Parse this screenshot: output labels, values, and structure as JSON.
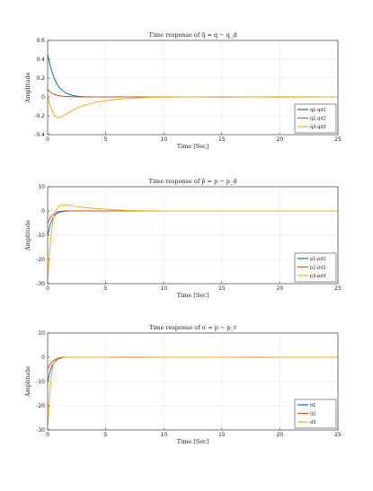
{
  "chart_data": [
    {
      "type": "line",
      "title": "Time response of q̃ = q − q_d",
      "xlabel": "Time [Sec]",
      "ylabel": "Amplitude",
      "xlim": [
        0,
        25
      ],
      "ylim": [
        -0.4,
        0.6
      ],
      "xticks": [
        "0",
        "5",
        "10",
        "15",
        "20",
        "25"
      ],
      "yticks": [
        "-0.4",
        "-0.2",
        "0",
        "0.2",
        "0.4",
        "0.6"
      ],
      "grid": true,
      "legend": "bottom-right",
      "series": [
        {
          "name": "q1-qd1",
          "color": "#0072BD",
          "x": [
            0,
            0.25,
            0.5,
            0.75,
            1,
            1.5,
            2,
            2.5,
            3,
            4,
            5,
            7,
            10,
            15,
            20,
            25
          ],
          "y": [
            0.45,
            0.32,
            0.22,
            0.15,
            0.1,
            0.045,
            0.02,
            0.008,
            0.003,
            0,
            0,
            0,
            0,
            0,
            0,
            0
          ]
        },
        {
          "name": "q2-qd2",
          "color": "#D95319",
          "x": [
            0,
            0.25,
            0.5,
            0.75,
            1,
            1.5,
            2,
            2.5,
            3,
            4,
            5,
            7,
            10,
            15,
            20,
            25
          ],
          "y": [
            0.08,
            0.05,
            0.03,
            0.02,
            0.012,
            0.006,
            0.003,
            0.001,
            0,
            0,
            0,
            0,
            0,
            0,
            0,
            0
          ]
        },
        {
          "name": "q3-qd3",
          "color": "#EDB120",
          "x": [
            0,
            0.3,
            0.6,
            0.9,
            1.2,
            1.5,
            2,
            2.5,
            3,
            4,
            5,
            6,
            7,
            8,
            9,
            10,
            12,
            15,
            20,
            25
          ],
          "y": [
            0,
            -0.12,
            -0.2,
            -0.22,
            -0.21,
            -0.19,
            -0.155,
            -0.12,
            -0.095,
            -0.06,
            -0.04,
            -0.025,
            -0.015,
            -0.008,
            -0.004,
            -0.002,
            0,
            0.003,
            -0.002,
            0
          ]
        }
      ]
    },
    {
      "type": "line",
      "title": "Time response of p̃ = p − p_d",
      "xlabel": "Time [Sec]",
      "ylabel": "Amplitude",
      "xlim": [
        0,
        25
      ],
      "ylim": [
        -30,
        10
      ],
      "xticks": [
        "0",
        "5",
        "10",
        "15",
        "20",
        "25"
      ],
      "yticks": [
        "-30",
        "-20",
        "-10",
        "0",
        "10"
      ],
      "grid": true,
      "legend": "bottom-right",
      "series": [
        {
          "name": "p1-pd1",
          "color": "#0072BD",
          "x": [
            0,
            0.2,
            0.4,
            0.6,
            0.8,
            1,
            1.5,
            2,
            3,
            5,
            10,
            25
          ],
          "y": [
            -10,
            -6,
            -3.5,
            -2,
            -1,
            -0.5,
            -0.1,
            0,
            0,
            0,
            0,
            0
          ]
        },
        {
          "name": "p2-pd2",
          "color": "#D95319",
          "x": [
            0,
            0.2,
            0.4,
            0.6,
            0.8,
            1,
            1.5,
            2,
            3,
            5,
            10,
            25
          ],
          "y": [
            -5,
            -3,
            -1.8,
            -1,
            -0.5,
            -0.2,
            0,
            0,
            0,
            0,
            0,
            0
          ]
        },
        {
          "name": "p3-pd3",
          "color": "#EDB120",
          "x": [
            0,
            0.1,
            0.2,
            0.35,
            0.5,
            0.7,
            0.9,
            1.1,
            1.3,
            1.6,
            2,
            2.5,
            3,
            4,
            5,
            6,
            7,
            8,
            10,
            15,
            20,
            25
          ],
          "y": [
            -28,
            -22,
            -15,
            -8,
            -3,
            0,
            1.5,
            2.2,
            2.5,
            2.5,
            2.2,
            1.8,
            1.5,
            1,
            0.7,
            0.4,
            0.2,
            0.1,
            0,
            0,
            0,
            0
          ]
        }
      ]
    },
    {
      "type": "line",
      "title": "Time response of σ = p − p_r",
      "xlabel": "Time [Sec]",
      "ylabel": "Amplitude",
      "xlim": [
        0,
        25
      ],
      "ylim": [
        -30,
        10
      ],
      "xticks": [
        "0",
        "5",
        "10",
        "15",
        "20",
        "25"
      ],
      "yticks": [
        "-30",
        "-20",
        "-10",
        "0",
        "10"
      ],
      "grid": true,
      "legend": "bottom-right",
      "series": [
        {
          "name": "σ1",
          "color": "#0072BD",
          "x": [
            0,
            0.2,
            0.4,
            0.6,
            0.8,
            1,
            1.3,
            1.6,
            2,
            3,
            25
          ],
          "y": [
            -10,
            -6,
            -3.5,
            -2,
            -1,
            -0.5,
            -0.2,
            0,
            0,
            0,
            0
          ]
        },
        {
          "name": "σ2",
          "color": "#D95319",
          "x": [
            0,
            0.2,
            0.4,
            0.6,
            0.8,
            1,
            1.3,
            2,
            25
          ],
          "y": [
            -5,
            -3,
            -1.8,
            -1,
            -0.5,
            -0.2,
            0,
            0,
            0
          ]
        },
        {
          "name": "σ3",
          "color": "#EDB120",
          "x": [
            0,
            0.1,
            0.2,
            0.35,
            0.5,
            0.7,
            0.9,
            1.1,
            1.4,
            1.8,
            2.2,
            3,
            4,
            5,
            6,
            8,
            10,
            12,
            15,
            18,
            20,
            22,
            25
          ],
          "y": [
            -28,
            -22,
            -14,
            -7,
            -3,
            -1,
            -0.3,
            0,
            0,
            0,
            0,
            0,
            0,
            0,
            0.1,
            0.1,
            0,
            0,
            0,
            0.1,
            0,
            0,
            0
          ]
        }
      ]
    }
  ]
}
